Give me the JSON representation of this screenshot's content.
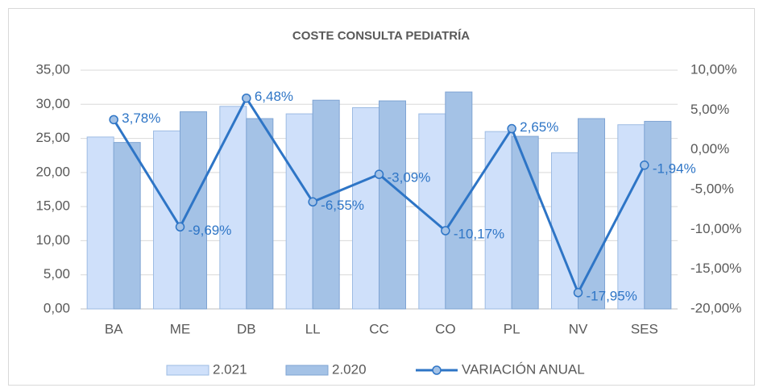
{
  "chart_data": {
    "type": "bar",
    "title": "COSTE CONSULTA PEDIATRÍA",
    "categories": [
      "BA",
      "ME",
      "DB",
      "LL",
      "CC",
      "CO",
      "PL",
      "NV",
      "SES"
    ],
    "series": [
      {
        "name": "2.021",
        "color": "#cfe0fa",
        "values": [
          25.2,
          26.1,
          29.7,
          28.6,
          29.5,
          28.6,
          26.0,
          22.9,
          27.0
        ]
      },
      {
        "name": "2.020",
        "color": "#a4c2e6",
        "values": [
          24.4,
          28.9,
          27.9,
          30.6,
          30.5,
          31.8,
          25.3,
          27.9,
          27.5
        ]
      },
      {
        "name": "VARIACIÓN ANUAL",
        "type": "line",
        "axis": "y2",
        "color": "#2e75c6",
        "values": [
          3.78,
          -9.69,
          6.48,
          -6.55,
          -3.09,
          -10.17,
          2.65,
          -17.95,
          -1.94
        ],
        "value_labels": [
          "3,78%",
          "-9,69%",
          "6,48%",
          "-6,55%",
          "-3,09%",
          "-10,17%",
          "2,65%",
          "-17,95%",
          "-1,94%"
        ]
      }
    ],
    "ylim": [
      0,
      35
    ],
    "yticks": [
      {
        "value": 0,
        "label": "0,00"
      },
      {
        "value": 5,
        "label": "5,00"
      },
      {
        "value": 10,
        "label": "10,00"
      },
      {
        "value": 15,
        "label": "15,00"
      },
      {
        "value": 20,
        "label": "20,00"
      },
      {
        "value": 25,
        "label": "25,00"
      },
      {
        "value": 30,
        "label": "30,00"
      },
      {
        "value": 35,
        "label": "35,00"
      }
    ],
    "y2lim": [
      -20,
      10
    ],
    "y2ticks": [
      {
        "value": -20,
        "label": "-20,00%"
      },
      {
        "value": -15,
        "label": "-15,00%"
      },
      {
        "value": -10,
        "label": "-10,00%"
      },
      {
        "value": -5,
        "label": "-5,00%"
      },
      {
        "value": 0,
        "label": "0,00%"
      },
      {
        "value": 5,
        "label": "5,00%"
      },
      {
        "value": 10,
        "label": "10,00%"
      }
    ],
    "grid": true,
    "legend": "bottom"
  }
}
